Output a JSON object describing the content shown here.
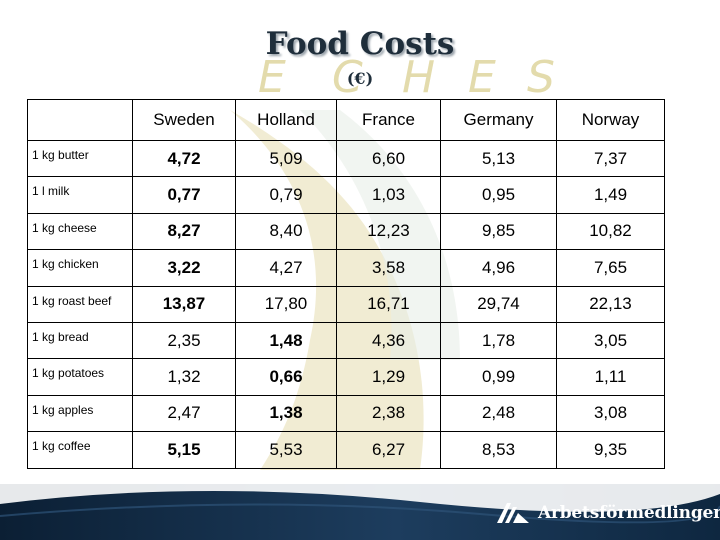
{
  "title": "Food Costs",
  "subtitle": "(€)",
  "table": {
    "columns": [
      "",
      "Sweden",
      "Holland",
      "France",
      "Germany",
      "Norway"
    ],
    "rows": [
      {
        "item": "1 kg butter",
        "values": [
          "4,72",
          "5,09",
          "6,60",
          "5,13",
          "7,37"
        ],
        "bold": [
          true,
          false,
          false,
          false,
          false
        ]
      },
      {
        "item": "1 l milk",
        "values": [
          "0,77",
          "0,79",
          "1,03",
          "0,95",
          "1,49"
        ],
        "bold": [
          true,
          false,
          false,
          false,
          false
        ]
      },
      {
        "item": "1 kg cheese",
        "values": [
          "8,27",
          "8,40",
          "12,23",
          "9,85",
          "10,82"
        ],
        "bold": [
          true,
          false,
          false,
          false,
          false
        ]
      },
      {
        "item": "1 kg chicken",
        "values": [
          "3,22",
          "4,27",
          "3,58",
          "4,96",
          "7,65"
        ],
        "bold": [
          true,
          false,
          false,
          false,
          false
        ]
      },
      {
        "item": "1 kg roast beef",
        "values": [
          "13,87",
          "17,80",
          "16,71",
          "29,74",
          "22,13"
        ],
        "bold": [
          true,
          false,
          false,
          false,
          false
        ]
      },
      {
        "item": "1 kg bread",
        "values": [
          "2,35",
          "1,48",
          "4,36",
          "1,78",
          "3,05"
        ],
        "bold": [
          false,
          true,
          false,
          false,
          false
        ]
      },
      {
        "item": "1 kg potatoes",
        "values": [
          "1,32",
          "0,66",
          "1,29",
          "0,99",
          "1,11"
        ],
        "bold": [
          false,
          true,
          false,
          false,
          false
        ]
      },
      {
        "item": "1 kg apples",
        "values": [
          "2,47",
          "1,38",
          "2,38",
          "2,48",
          "3,08"
        ],
        "bold": [
          false,
          true,
          false,
          false,
          false
        ]
      },
      {
        "item": "1 kg coffee",
        "values": [
          "5,15",
          "5,53",
          "6,27",
          "8,53",
          "9,35"
        ],
        "bold": [
          true,
          false,
          false,
          false,
          false
        ]
      }
    ]
  },
  "watermark_text": [
    "E",
    "C",
    "H",
    "E",
    "S"
  ],
  "footer": {
    "logo_text": "Arbetsförmedlingen",
    "logo_icon": "arbetsformedlingen-logo-icon"
  },
  "colors": {
    "title": "#1f2e3b",
    "watermark": "#d8cd8a",
    "footer_dark": "#0b1f34",
    "footer_mid": "#1d3d5e"
  }
}
